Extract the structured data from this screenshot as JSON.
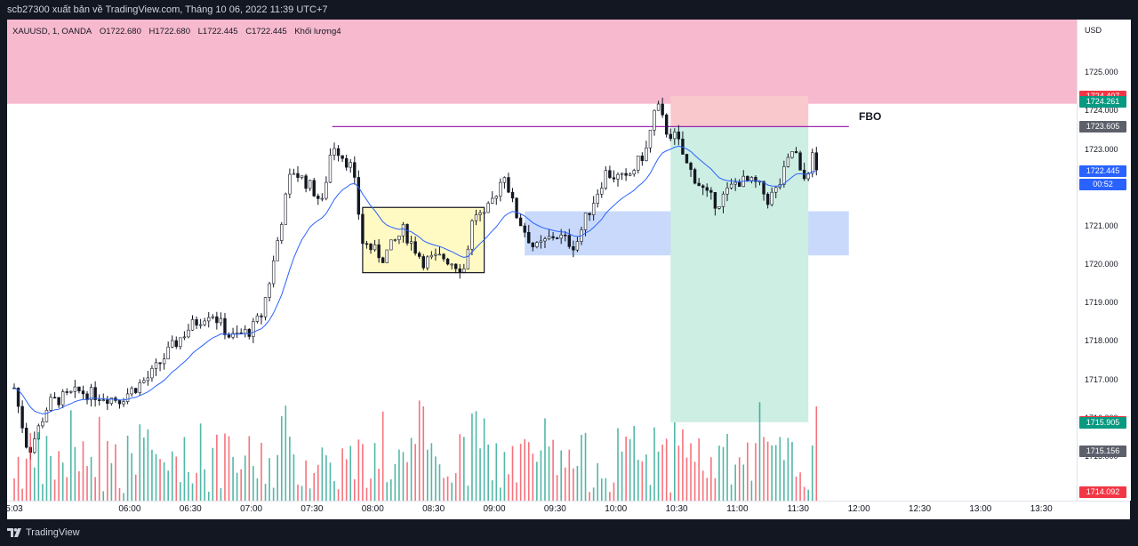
{
  "header": {
    "title": "scb27300 xuất bản về TradingView.com, Tháng 10 06, 2022 11:39 UTC+7"
  },
  "legend": {
    "symbol": "XAUUSD, 1, OANDA",
    "open": "O1722.680",
    "high": "H1722.680",
    "low": "L1722.445",
    "close": "C1722.445",
    "volume_label": "Khối lượng4"
  },
  "annotation": {
    "fbo_text": "FBO"
  },
  "price_scale": {
    "currency": "USD",
    "ticks": [
      "1725.000",
      "1724.000",
      "1723.000",
      "1722.000",
      "1721.000",
      "1720.000",
      "1719.000",
      "1718.000",
      "1717.000",
      "1716.000",
      "1715.000"
    ],
    "labels": [
      {
        "text": "1724.407",
        "color": "#f23645"
      },
      {
        "text": "1724.261",
        "color": "#089981"
      },
      {
        "text": "1723.605",
        "color": "#5d606b"
      },
      {
        "text": "1722.445",
        "color": "#2962ff"
      },
      {
        "text": "00:52",
        "color": "#2962ff"
      },
      {
        "text": "1715.914",
        "color": "#f23645"
      },
      {
        "text": "1715.905",
        "color": "#089981"
      },
      {
        "text": "1715.156",
        "color": "#5d606b"
      },
      {
        "text": "1714.092",
        "color": "#f23645"
      }
    ]
  },
  "time_scale": {
    "ticks": [
      "5:03",
      "06:00",
      "06:30",
      "07:00",
      "07:30",
      "08:00",
      "08:30",
      "09:00",
      "09:30",
      "10:00",
      "10:30",
      "11:00",
      "11:30",
      "12:00",
      "12:30",
      "13:00",
      "13:30"
    ]
  },
  "footer": {
    "brand": "TradingView"
  },
  "colors": {
    "up": "#089981",
    "down": "#f23645",
    "candle": "#131722",
    "ma": "#2962ff",
    "supply_zone": "#f7b9cd",
    "demand_zone": "#c5d7fb",
    "range_box": "#fff9c4",
    "profit_zone": "#cdeee3",
    "loss_zone": "#f9c8cd",
    "level_line": "#9c27b0"
  },
  "chart_data": {
    "type": "candlestick",
    "symbol": "XAUUSD",
    "interval": "1",
    "exchange": "OANDA",
    "ylim": [
      1714.0,
      1726.0
    ],
    "x_range": [
      "05:03",
      "13:40"
    ],
    "price_path": [
      {
        "t": "05:03",
        "p": 1716.8
      },
      {
        "t": "05:10",
        "p": 1715.1
      },
      {
        "t": "05:20",
        "p": 1716.4
      },
      {
        "t": "05:35",
        "p": 1716.7
      },
      {
        "t": "05:55",
        "p": 1716.5
      },
      {
        "t": "06:10",
        "p": 1717.1
      },
      {
        "t": "06:20",
        "p": 1717.8
      },
      {
        "t": "06:30",
        "p": 1718.4
      },
      {
        "t": "06:40",
        "p": 1718.8
      },
      {
        "t": "06:50",
        "p": 1718.1
      },
      {
        "t": "07:00",
        "p": 1718.3
      },
      {
        "t": "07:05",
        "p": 1718.7
      },
      {
        "t": "07:10",
        "p": 1719.8
      },
      {
        "t": "07:15",
        "p": 1721.2
      },
      {
        "t": "07:20",
        "p": 1722.5
      },
      {
        "t": "07:30",
        "p": 1722.0
      },
      {
        "t": "07:35",
        "p": 1721.6
      },
      {
        "t": "07:40",
        "p": 1723.2
      },
      {
        "t": "07:50",
        "p": 1722.5
      },
      {
        "t": "07:55",
        "p": 1720.6
      },
      {
        "t": "08:05",
        "p": 1720.2
      },
      {
        "t": "08:15",
        "p": 1720.9
      },
      {
        "t": "08:25",
        "p": 1720.1
      },
      {
        "t": "08:35",
        "p": 1720.2
      },
      {
        "t": "08:45",
        "p": 1719.9
      },
      {
        "t": "08:50",
        "p": 1721.4
      },
      {
        "t": "08:55",
        "p": 1721.2
      },
      {
        "t": "09:05",
        "p": 1722.4
      },
      {
        "t": "09:10",
        "p": 1721.4
      },
      {
        "t": "09:20",
        "p": 1720.4
      },
      {
        "t": "09:30",
        "p": 1720.8
      },
      {
        "t": "09:40",
        "p": 1720.5
      },
      {
        "t": "09:45",
        "p": 1721.2
      },
      {
        "t": "09:55",
        "p": 1722.4
      },
      {
        "t": "10:05",
        "p": 1722.2
      },
      {
        "t": "10:15",
        "p": 1723.0
      },
      {
        "t": "10:20",
        "p": 1724.2
      },
      {
        "t": "10:25",
        "p": 1723.5
      },
      {
        "t": "10:30",
        "p": 1723.3
      },
      {
        "t": "10:35",
        "p": 1722.6
      },
      {
        "t": "10:45",
        "p": 1721.8
      },
      {
        "t": "10:50",
        "p": 1721.6
      },
      {
        "t": "11:00",
        "p": 1722.2
      },
      {
        "t": "11:10",
        "p": 1722.1
      },
      {
        "t": "11:15",
        "p": 1721.7
      },
      {
        "t": "11:20",
        "p": 1722.0
      },
      {
        "t": "11:28",
        "p": 1723.1
      },
      {
        "t": "11:32",
        "p": 1722.1
      },
      {
        "t": "11:37",
        "p": 1722.8
      },
      {
        "t": "11:39",
        "p": 1722.445
      }
    ],
    "supply_zone": {
      "y": [
        1724.2,
        1726.0
      ]
    },
    "demand_zone": {
      "x": [
        "09:15",
        "11:55"
      ],
      "y": [
        1720.25,
        1721.4
      ]
    },
    "range_box": {
      "x": [
        "07:55",
        "08:55"
      ],
      "y": [
        1719.8,
        1721.5
      ]
    },
    "fbo_level": {
      "x": [
        "07:40",
        "11:55"
      ],
      "y": 1723.605,
      "label": "FBO"
    },
    "position": {
      "x": [
        "10:27",
        "11:35"
      ],
      "entry": 1723.605,
      "stop": 1724.407,
      "target": 1715.905
    }
  }
}
